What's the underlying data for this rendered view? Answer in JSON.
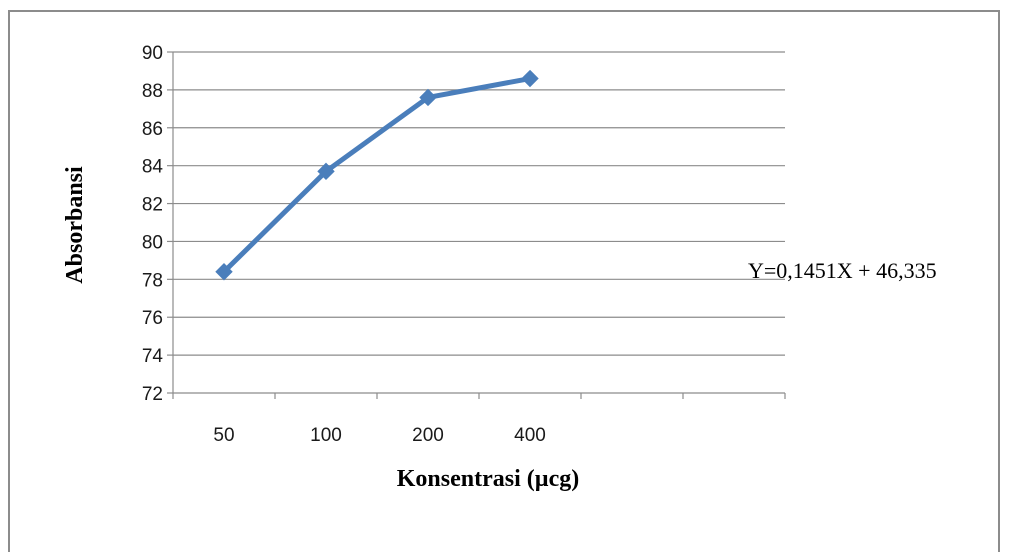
{
  "chart_data": {
    "type": "line",
    "categories": [
      "50",
      "100",
      "200",
      "400"
    ],
    "series": [
      {
        "values": [
          78.4,
          83.7,
          87.6,
          88.6
        ]
      }
    ],
    "xlabel": "Konsentrasi (µcg)",
    "ylabel": "Absorbansi",
    "ylim": [
      72,
      90
    ],
    "yticks": [
      72,
      74,
      76,
      78,
      80,
      82,
      84,
      86,
      88,
      90
    ],
    "x_slots": 6,
    "grid": "horizontal",
    "annotation": "Y=0,1451X  + 46,335",
    "colors": {
      "line": "#4a7ebb",
      "grid": "#8c8c8c",
      "axis": "#8c8c8c",
      "frame": "#8c8c8c"
    }
  }
}
